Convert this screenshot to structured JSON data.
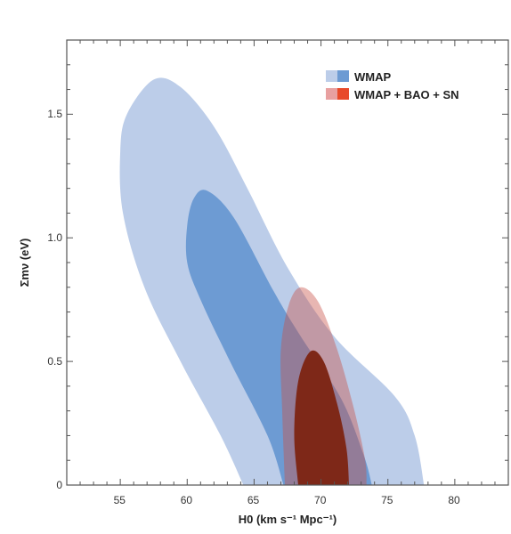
{
  "chart_data": {
    "type": "contour",
    "title": "",
    "xlabel": "H0 (km s⁻¹ Mpc⁻¹)",
    "ylabel": "Σmν (eV)",
    "xlim": [
      51,
      84
    ],
    "ylim": [
      0,
      1.8
    ],
    "x_ticks": [
      "55",
      "60",
      "65",
      "70",
      "75",
      "80"
    ],
    "y_ticks": [
      "0",
      "0.5",
      "1.0",
      "1.5"
    ],
    "legend_position": "top-right",
    "series": [
      {
        "name": "WMAP",
        "colors": {
          "outer": "#bccde9",
          "inner": "#6d9bd3"
        },
        "contours": [
          {
            "level": "outer",
            "points": [
              [
                64.2,
                0
              ],
              [
                62.5,
                0.2
              ],
              [
                59.5,
                0.5
              ],
              [
                56.8,
                0.8
              ],
              [
                55.2,
                1.1
              ],
              [
                55.0,
                1.35
              ],
              [
                55.5,
                1.5
              ],
              [
                57.5,
                1.64
              ],
              [
                59.5,
                1.61
              ],
              [
                62,
                1.45
              ],
              [
                64.5,
                1.2
              ],
              [
                67.5,
                0.88
              ],
              [
                71,
                0.6
              ],
              [
                75.5,
                0.36
              ],
              [
                77,
                0.2
              ],
              [
                77.7,
                0
              ]
            ]
          },
          {
            "level": "inner",
            "points": [
              [
                67.2,
                0
              ],
              [
                66,
                0.2
              ],
              [
                63.2,
                0.5
              ],
              [
                61,
                0.75
              ],
              [
                60,
                0.9
              ],
              [
                60,
                1.05
              ],
              [
                60.5,
                1.16
              ],
              [
                61.5,
                1.19
              ],
              [
                63.5,
                1.08
              ],
              [
                66.5,
                0.78
              ],
              [
                68.5,
                0.6
              ],
              [
                71.5,
                0.35
              ],
              [
                73.2,
                0.12
              ],
              [
                73.8,
                0
              ]
            ]
          }
        ]
      },
      {
        "name": "WMAP + BAO + SN",
        "colors": {
          "outer": "#e8a0a0",
          "inner": "#e84a2a"
        },
        "contours": [
          {
            "level": "outer",
            "points": [
              [
                67.3,
                0
              ],
              [
                67.1,
                0.3
              ],
              [
                67.0,
                0.55
              ],
              [
                67.6,
                0.73
              ],
              [
                68.5,
                0.8
              ],
              [
                69.8,
                0.74
              ],
              [
                71.2,
                0.55
              ],
              [
                72.5,
                0.3
              ],
              [
                73.3,
                0.1
              ],
              [
                73.4,
                0
              ]
            ]
          },
          {
            "level": "inner",
            "points": [
              [
                68.3,
                0
              ],
              [
                68.0,
                0.2
              ],
              [
                68.3,
                0.42
              ],
              [
                69.2,
                0.54
              ],
              [
                70.2,
                0.5
              ],
              [
                71.2,
                0.33
              ],
              [
                71.9,
                0.15
              ],
              [
                72.1,
                0
              ]
            ]
          }
        ]
      }
    ]
  }
}
